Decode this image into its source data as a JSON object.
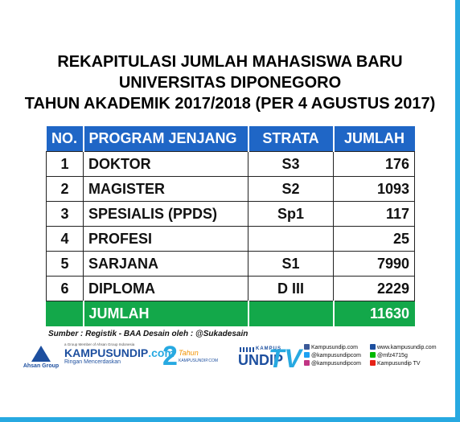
{
  "title": {
    "line1": "REKAPITULASI JUMLAH MAHASISWA BARU",
    "line2": "UNIVERSITAS DIPONEGORO",
    "line3": "TAHUN AKADEMIK 2017/2018 (PER 4 AGUSTUS 2017)"
  },
  "table": {
    "headers": [
      "NO.",
      "PROGRAM JENJANG",
      "STRATA",
      "JUMLAH"
    ],
    "rows": [
      {
        "no": "1",
        "program": "DOKTOR",
        "strata": "S3",
        "jumlah": "176"
      },
      {
        "no": "2",
        "program": "MAGISTER",
        "strata": "S2",
        "jumlah": "1093"
      },
      {
        "no": "3",
        "program": "SPESIALIS (PPDS)",
        "strata": "Sp1",
        "jumlah": "117"
      },
      {
        "no": "4",
        "program": "PROFESI",
        "strata": "",
        "jumlah": "25"
      },
      {
        "no": "5",
        "program": "SARJANA",
        "strata": "S1",
        "jumlah": "7990"
      },
      {
        "no": "6",
        "program": "DIPLOMA",
        "strata": "D III",
        "jumlah": "2229"
      }
    ],
    "total_label": "JUMLAH",
    "total_value": "11630"
  },
  "source": "Sumber : Registik - BAA  Desain oleh : @Sukadesain",
  "footer": {
    "ahsan_group": "Ahsan Group",
    "kampus_tiny": "a Group Member of Ahsan Group Indonesia",
    "kampus_brand_a": "KAMPUSUNDIP",
    "kampus_brand_b": ".com",
    "kampus_tagline": "Ringan Mencerdaskan",
    "two_years_num": "2",
    "two_years_word": "Tahun",
    "two_years_sub": "KAMPUSUNDIP.COM",
    "tv_kampus": "KAMPUS",
    "tv_undip": "UNDIP",
    "tv_tv": "TV",
    "socials": {
      "facebook": "Kampusundip.com",
      "website": "www.kampusundip.com",
      "twitter": "@kampusundipcom",
      "line": "@mfz4715g",
      "instagram": "@kampusundipcom",
      "youtube": "Kampusundip TV"
    }
  },
  "colors": {
    "header_bg": "#1f66c6",
    "total_bg": "#13a84a",
    "frame": "#27a9e1"
  }
}
